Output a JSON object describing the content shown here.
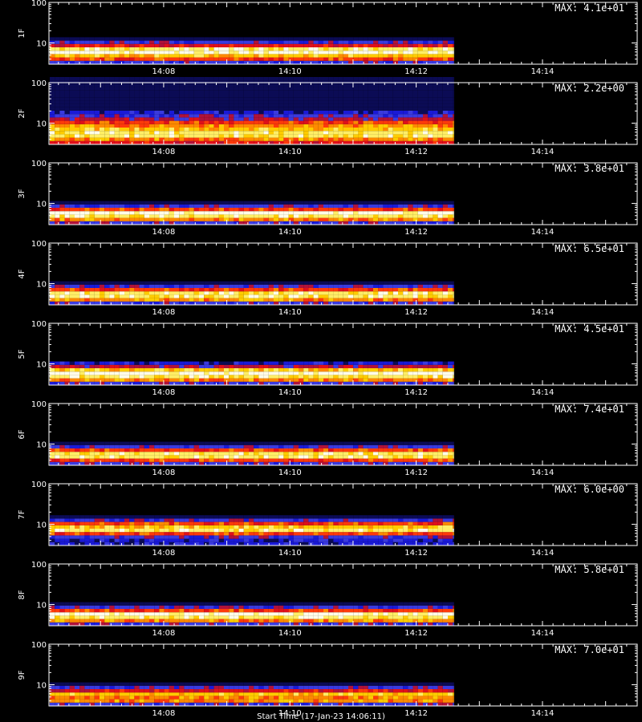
{
  "figure": {
    "x_axis_title": "Start Time (17-Jan-23 14:06:11)"
  },
  "chart_data": [
    {
      "type": "heatmap",
      "panel_label": "1F",
      "max_label": "MAX: 4.1e+01",
      "y_scale": "log",
      "y_ticks": [
        "10",
        "100"
      ],
      "x_ticks": [
        "14:08",
        "14:10",
        "14:12",
        "14:14"
      ],
      "data_extent_time_end": "14:12:36"
    },
    {
      "type": "heatmap",
      "panel_label": "2F",
      "max_label": "MAX: 2.2e+00",
      "y_scale": "log",
      "y_ticks": [
        "10",
        "100"
      ],
      "x_ticks": [
        "14:08",
        "14:10",
        "14:12",
        "14:14"
      ],
      "data_extent_time_end": "14:12:36"
    },
    {
      "type": "heatmap",
      "panel_label": "3F",
      "max_label": "MAX: 3.8e+01",
      "y_scale": "log",
      "y_ticks": [
        "10",
        "100"
      ],
      "x_ticks": [
        "14:08",
        "14:10",
        "14:12",
        "14:14"
      ],
      "data_extent_time_end": "14:12:36"
    },
    {
      "type": "heatmap",
      "panel_label": "4F",
      "max_label": "MAX: 6.5e+01",
      "y_scale": "log",
      "y_ticks": [
        "10",
        "100"
      ],
      "x_ticks": [
        "14:08",
        "14:10",
        "14:12",
        "14:14"
      ],
      "data_extent_time_end": "14:12:36"
    },
    {
      "type": "heatmap",
      "panel_label": "5F",
      "max_label": "MAX: 4.5e+01",
      "y_scale": "log",
      "y_ticks": [
        "10",
        "100"
      ],
      "x_ticks": [
        "14:08",
        "14:10",
        "14:12",
        "14:14"
      ],
      "data_extent_time_end": "14:12:36"
    },
    {
      "type": "heatmap",
      "panel_label": "6F",
      "max_label": "MAX: 7.4e+01",
      "y_scale": "log",
      "y_ticks": [
        "10",
        "100"
      ],
      "x_ticks": [
        "14:08",
        "14:10",
        "14:12",
        "14:14"
      ],
      "data_extent_time_end": "14:12:36"
    },
    {
      "type": "heatmap",
      "panel_label": "7F",
      "max_label": "MAX: 6.0e+00",
      "y_scale": "log",
      "y_ticks": [
        "10",
        "100"
      ],
      "x_ticks": [
        "14:08",
        "14:10",
        "14:12",
        "14:14"
      ],
      "data_extent_time_end": "14:12:36"
    },
    {
      "type": "heatmap",
      "panel_label": "8F",
      "max_label": "MAX: 5.8e+01",
      "y_scale": "log",
      "y_ticks": [
        "10",
        "100"
      ],
      "x_ticks": [
        "14:08",
        "14:10",
        "14:12",
        "14:14"
      ],
      "data_extent_time_end": "14:12:36"
    },
    {
      "type": "heatmap",
      "panel_label": "9F",
      "max_label": "MAX: 7.0e+01",
      "y_scale": "log",
      "y_ticks": [
        "10",
        "100"
      ],
      "x_ticks": [
        "14:08",
        "14:10",
        "14:12",
        "14:14"
      ],
      "data_extent_time_end": "14:12:36"
    }
  ],
  "colors": {
    "background": "#000000",
    "axis": "#ffffff",
    "colormap": [
      "#000000",
      "#0b0b55",
      "#1a1ad8",
      "#3a3ae0",
      "#b0123a",
      "#e0101a",
      "#ff3a0a",
      "#ff8a00",
      "#ffcc00",
      "#ffee66",
      "#fffce8"
    ]
  }
}
